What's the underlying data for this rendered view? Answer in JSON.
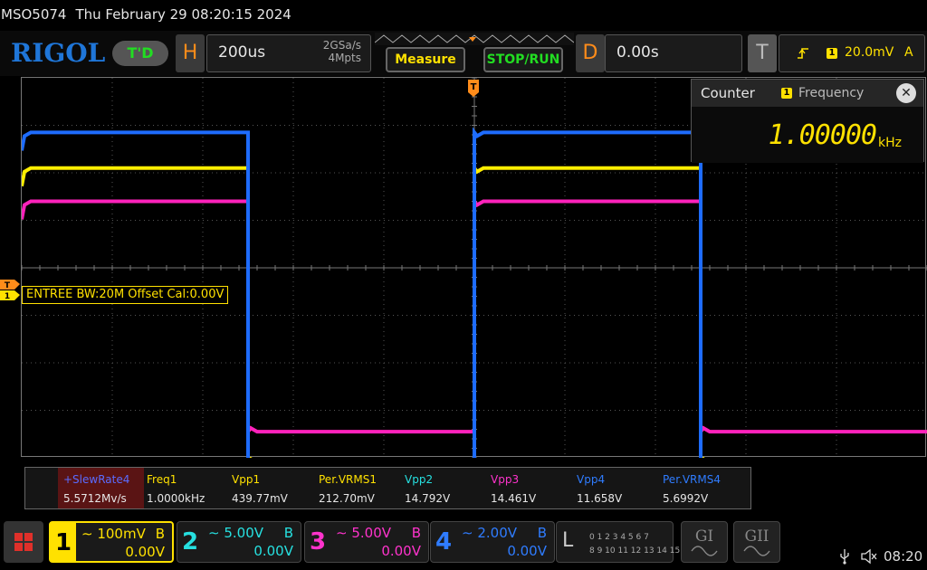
{
  "status": {
    "model": "MSO5074",
    "datetime": "Thu February 29 08:20:15 2024"
  },
  "toolbar": {
    "logo": "RIGOL",
    "td_badge": "T'D",
    "horizontal": {
      "letter": "H",
      "timebase": "200us",
      "sample_rate": "2GSa/s",
      "memory_depth": "4Mpts"
    },
    "measure_label": "Measure",
    "stop_run_label": "STOP/RUN",
    "delay": {
      "letter": "D",
      "value": "0.00s"
    },
    "trigger": {
      "letter": "T",
      "channel": "1",
      "level": "20.0mV",
      "mode": "A"
    }
  },
  "counter": {
    "title": "Counter",
    "channel": "1",
    "type": "Frequency",
    "value": "1.00000",
    "unit": "kHz"
  },
  "channel_label": "ENTREE BW:20M Offset Cal:0.00V",
  "measurements": [
    {
      "name": "+SlewRate4",
      "value": "5.5712Mv/s",
      "color": "#5a6cff"
    },
    {
      "name": "Freq1",
      "value": "1.0000kHz",
      "color": "#ffe100"
    },
    {
      "name": "Vpp1",
      "value": "439.77mV",
      "color": "#ffe100"
    },
    {
      "name": "Per.VRMS1",
      "value": "212.70mV",
      "color": "#ffe100"
    },
    {
      "name": "Vpp2",
      "value": "14.792V",
      "color": "#26e0e0"
    },
    {
      "name": "Vpp3",
      "value": "14.461V",
      "color": "#ff33cc"
    },
    {
      "name": "Vpp4",
      "value": "11.658V",
      "color": "#2f7cff"
    },
    {
      "name": "Per.VRMS4",
      "value": "5.6992V",
      "color": "#2f7cff"
    }
  ],
  "channels": [
    {
      "num": "1",
      "scale": "100mV",
      "coupling": "B",
      "offset": "0.00V",
      "color": "#ffe100"
    },
    {
      "num": "2",
      "scale": "5.00V",
      "coupling": "B",
      "offset": "0.00V",
      "color": "#26e0e0"
    },
    {
      "num": "3",
      "scale": "5.00V",
      "coupling": "B",
      "offset": "0.00V",
      "color": "#ff33cc"
    },
    {
      "num": "4",
      "scale": "2.00V",
      "coupling": "B",
      "offset": "0.00V",
      "color": "#2f7cff"
    }
  ],
  "logic": {
    "letter": "L",
    "row1": "0 1 2 3  4 5 6 7",
    "row2": "8 9 10 11 12 13 14 15"
  },
  "gen_buttons": [
    "GI",
    "GII"
  ],
  "clock": "08:20",
  "icons": [
    "usb-icon",
    "mute-speaker-icon",
    "close-icon",
    "trigger-edge-icon",
    "menu-grid-icon"
  ],
  "waveforms": {
    "period_divs": 5,
    "ch4_blue": {
      "color": "#1e6cff",
      "high_div": 1.15,
      "low_div": 9.1
    },
    "ch1_yellow": {
      "color": "#ffee00",
      "high_div": 1.9,
      "low_div": 8.1
    },
    "ch3_magenta": {
      "color": "#ff22bb",
      "high_div": 2.6,
      "low_div": 7.45
    }
  }
}
